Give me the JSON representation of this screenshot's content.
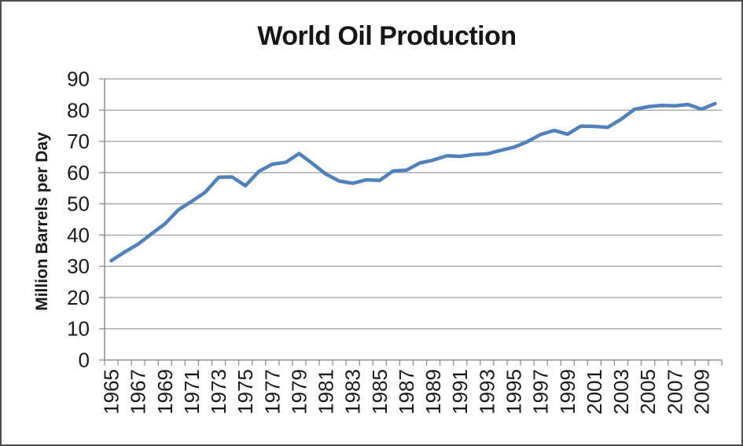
{
  "chart_data": {
    "type": "line",
    "title": "World Oil Production",
    "ylabel": "Million Barrels per Day",
    "xlabel": "",
    "x": [
      1965,
      1966,
      1967,
      1968,
      1969,
      1970,
      1971,
      1972,
      1973,
      1974,
      1975,
      1976,
      1977,
      1978,
      1979,
      1980,
      1981,
      1982,
      1983,
      1984,
      1985,
      1986,
      1987,
      1988,
      1989,
      1990,
      1991,
      1992,
      1993,
      1994,
      1995,
      1996,
      1997,
      1998,
      1999,
      2000,
      2001,
      2002,
      2003,
      2004,
      2005,
      2006,
      2007,
      2008,
      2009,
      2010
    ],
    "values": [
      31.8,
      34.6,
      37.1,
      40.4,
      43.6,
      48.1,
      50.8,
      53.7,
      58.5,
      58.6,
      55.8,
      60.4,
      62.7,
      63.3,
      66.1,
      62.9,
      59.5,
      57.3,
      56.6,
      57.7,
      57.5,
      60.5,
      60.8,
      63.1,
      64.0,
      65.4,
      65.2,
      65.8,
      66.0,
      67.1,
      68.1,
      69.9,
      72.2,
      73.5,
      72.3,
      74.9,
      74.8,
      74.5,
      77.1,
      80.3,
      81.1,
      81.5,
      81.4,
      81.8,
      80.3,
      82.1
    ],
    "ylim": [
      0,
      90
    ],
    "yticks": [
      0,
      10,
      20,
      30,
      40,
      50,
      60,
      70,
      80,
      90
    ],
    "xtick_labels": [
      "1965",
      "1967",
      "1969",
      "1971",
      "1973",
      "1975",
      "1977",
      "1979",
      "1981",
      "1983",
      "1985",
      "1987",
      "1989",
      "1991",
      "1993",
      "1995",
      "1997",
      "1999",
      "2001",
      "2003",
      "2005",
      "2007",
      "2009"
    ],
    "grid": "horizontal gridlines on",
    "legend": "none",
    "colors": {
      "line": "#4F81BD",
      "gridline": "#A6A6A6",
      "axis": "#8E8E8E",
      "text": "#1A1A1A",
      "title_text": "#161616",
      "background": "#FFFFFF",
      "frame_border": "#4F4F4F"
    }
  }
}
